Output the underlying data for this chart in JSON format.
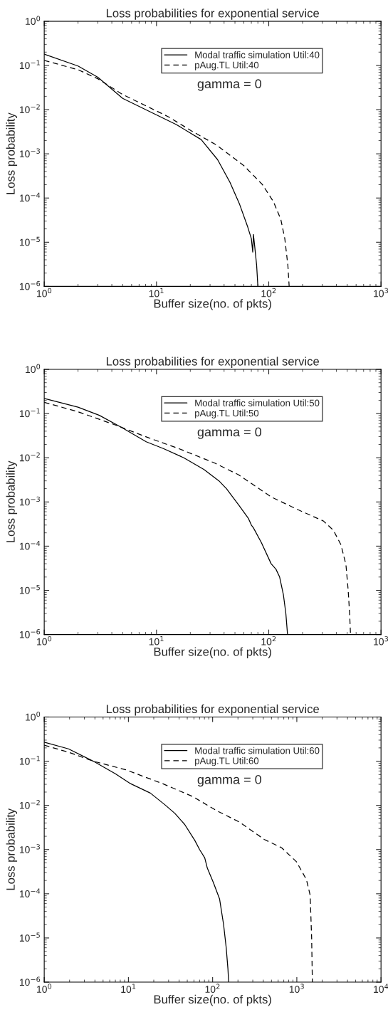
{
  "chart_data": [
    {
      "type": "line",
      "title": "Loss probabilities for exponential service",
      "xlabel": "Buffer size(no. of pkts)",
      "ylabel": "Loss probability",
      "log": "xy",
      "grid": false,
      "legend": "top right",
      "annotations": [
        "gamma = 0"
      ],
      "xlim": [
        1,
        1000
      ],
      "xticks": [
        {
          "value": 1,
          "label": "10$^{0}$"
        },
        {
          "value": 10,
          "label": "10$^{1}$"
        },
        {
          "value": 100,
          "label": "10$^{2}$"
        },
        {
          "value": 1000,
          "label": "10$^{3}$"
        }
      ],
      "ylim": [
        1e-06,
        1
      ],
      "yticks": [
        {
          "value": 1e-06,
          "label": "10$^{−6}$"
        },
        {
          "value": 1e-05,
          "label": "10$^{−5}$"
        },
        {
          "value": 0.0001,
          "label": "10$^{−4}$"
        },
        {
          "value": 0.001,
          "label": "10$^{−3}$"
        },
        {
          "value": 0.01,
          "label": "10$^{−2}$"
        },
        {
          "value": 0.1,
          "label": "10$^{−1}$"
        },
        {
          "value": 1,
          "label": "10$^{0}$"
        }
      ],
      "series": [
        {
          "name": "Modal traffic simulation Util:40",
          "color": "#000000",
          "line_style": "solid",
          "x": [
            1,
            2,
            3,
            5,
            8,
            15,
            25,
            35,
            45,
            55,
            65,
            70,
            72,
            73,
            75,
            78,
            80
          ],
          "values": [
            0.18,
            0.097,
            0.054,
            0.018,
            0.01,
            0.0046,
            0.0021,
            0.00074,
            0.00023,
            7.2e-05,
            2.2e-05,
            1.2e-05,
            6e-06,
            1.5e-05,
            8e-06,
            3e-06,
            1e-06
          ]
        },
        {
          "name": "pAug.TL Util:40",
          "color": "#000000",
          "line_style": "dashed",
          "x": [
            1,
            2,
            3,
            5,
            12.9,
            20.5,
            34,
            60,
            88,
            110,
            128,
            139,
            148,
            152
          ],
          "values": [
            0.13,
            0.08,
            0.05,
            0.022,
            0.0068,
            0.0033,
            0.0016,
            0.00054,
            0.0002,
            8.3e-05,
            3.3e-05,
            1.2e-05,
            3e-06,
            1e-06
          ]
        }
      ]
    },
    {
      "type": "line",
      "title": "Loss probabilities for exponential service",
      "xlabel": "Buffer size(no. of pkts)",
      "ylabel": "Loss probability",
      "log": "xy",
      "grid": false,
      "legend": "top right",
      "annotations": [
        "gamma = 0"
      ],
      "xlim": [
        1,
        1000
      ],
      "xticks": [
        {
          "value": 1,
          "label": "10$^{0}$"
        },
        {
          "value": 10,
          "label": "10$^{1}$"
        },
        {
          "value": 100,
          "label": "10$^{2}$"
        },
        {
          "value": 1000,
          "label": "10$^{3}$"
        }
      ],
      "ylim": [
        1e-06,
        1
      ],
      "yticks": [
        {
          "value": 1e-06,
          "label": "10$^{−6}$"
        },
        {
          "value": 1e-05,
          "label": "10$^{−5}$"
        },
        {
          "value": 0.0001,
          "label": "10$^{−4}$"
        },
        {
          "value": 0.001,
          "label": "10$^{−3}$"
        },
        {
          "value": 0.01,
          "label": "10$^{−2}$"
        },
        {
          "value": 0.1,
          "label": "10$^{−1}$"
        },
        {
          "value": 1,
          "label": "10$^{0}$"
        }
      ],
      "series": [
        {
          "name": "Modal traffic simulation Util:50",
          "color": "#000000",
          "line_style": "solid",
          "x": [
            1,
            2,
            3.1,
            5,
            8.1,
            11.6,
            17.5,
            26.5,
            36,
            42,
            54,
            66,
            70,
            73,
            86,
            105,
            116,
            125,
            135,
            142,
            147
          ],
          "values": [
            0.22,
            0.14,
            0.091,
            0.047,
            0.023,
            0.016,
            0.01,
            0.0054,
            0.003,
            0.002,
            0.00085,
            0.00042,
            0.0003,
            0.00026,
            0.00012,
            4e-05,
            3e-05,
            2e-05,
            8e-06,
            3e-06,
            1e-06
          ]
        },
        {
          "name": "pAug.TL Util:50",
          "color": "#000000",
          "line_style": "dashed",
          "x": [
            1,
            2,
            4.4,
            8.6,
            15.9,
            32.6,
            54,
            105,
            184,
            307,
            376,
            440,
            487,
            510,
            525,
            535
          ],
          "values": [
            0.18,
            0.11,
            0.054,
            0.028,
            0.016,
            0.0077,
            0.0041,
            0.0013,
            0.00066,
            0.00037,
            0.00023,
            0.000107,
            3.8e-05,
            1e-05,
            3e-06,
            1e-06
          ]
        }
      ]
    },
    {
      "type": "line",
      "title": "Loss probabilities for exponential service",
      "xlabel": "Buffer size(no. of pkts)",
      "ylabel": "Loss probability",
      "log": "xy",
      "grid": false,
      "legend": "top right",
      "annotations": [
        "gamma = 0"
      ],
      "xlim": [
        1,
        10000
      ],
      "xticks": [
        {
          "value": 1,
          "label": "10$^{0}$"
        },
        {
          "value": 10,
          "label": "10$^{1}$"
        },
        {
          "value": 100,
          "label": "10$^{2}$"
        },
        {
          "value": 1000,
          "label": "10$^{3}$"
        },
        {
          "value": 10000,
          "label": "10$^{4}$"
        }
      ],
      "ylim": [
        1e-06,
        1
      ],
      "yticks": [
        {
          "value": 1e-06,
          "label": "10$^{−6}$"
        },
        {
          "value": 1e-05,
          "label": "10$^{−5}$"
        },
        {
          "value": 0.0001,
          "label": "10$^{−4}$"
        },
        {
          "value": 0.001,
          "label": "10$^{−3}$"
        },
        {
          "value": 0.01,
          "label": "10$^{−2}$"
        },
        {
          "value": 0.1,
          "label": "10$^{−1}$"
        },
        {
          "value": 1,
          "label": "10$^{0}$"
        }
      ],
      "series": [
        {
          "name": "Modal traffic simulation Util:60",
          "color": "#000000",
          "line_style": "solid",
          "x": [
            1,
            1.94,
            3.82,
            7,
            10.6,
            18.2,
            27,
            35.6,
            46.6,
            61.6,
            70,
            80.6,
            86.5,
            102,
            121,
            135,
            145,
            152,
            155
          ],
          "values": [
            0.27,
            0.19,
            0.1,
            0.052,
            0.031,
            0.019,
            0.0104,
            0.0066,
            0.0037,
            0.0016,
            0.001,
            0.00065,
            0.00038,
            0.00018,
            7.6e-05,
            2e-05,
            6e-06,
            2e-06,
            1e-06
          ]
        },
        {
          "name": "pAug.TL Util:60",
          "color": "#000000",
          "line_style": "dashed",
          "x": [
            1,
            1.94,
            3.82,
            9.3,
            25.5,
            57.5,
            113,
            208,
            410,
            660,
            990,
            1300,
            1440,
            1500,
            1530
          ],
          "values": [
            0.23,
            0.16,
            0.1,
            0.064,
            0.031,
            0.016,
            0.0075,
            0.0042,
            0.0017,
            0.0011,
            0.00053,
            0.00021,
            9.3e-05,
            1e-05,
            1e-06
          ]
        }
      ]
    }
  ]
}
